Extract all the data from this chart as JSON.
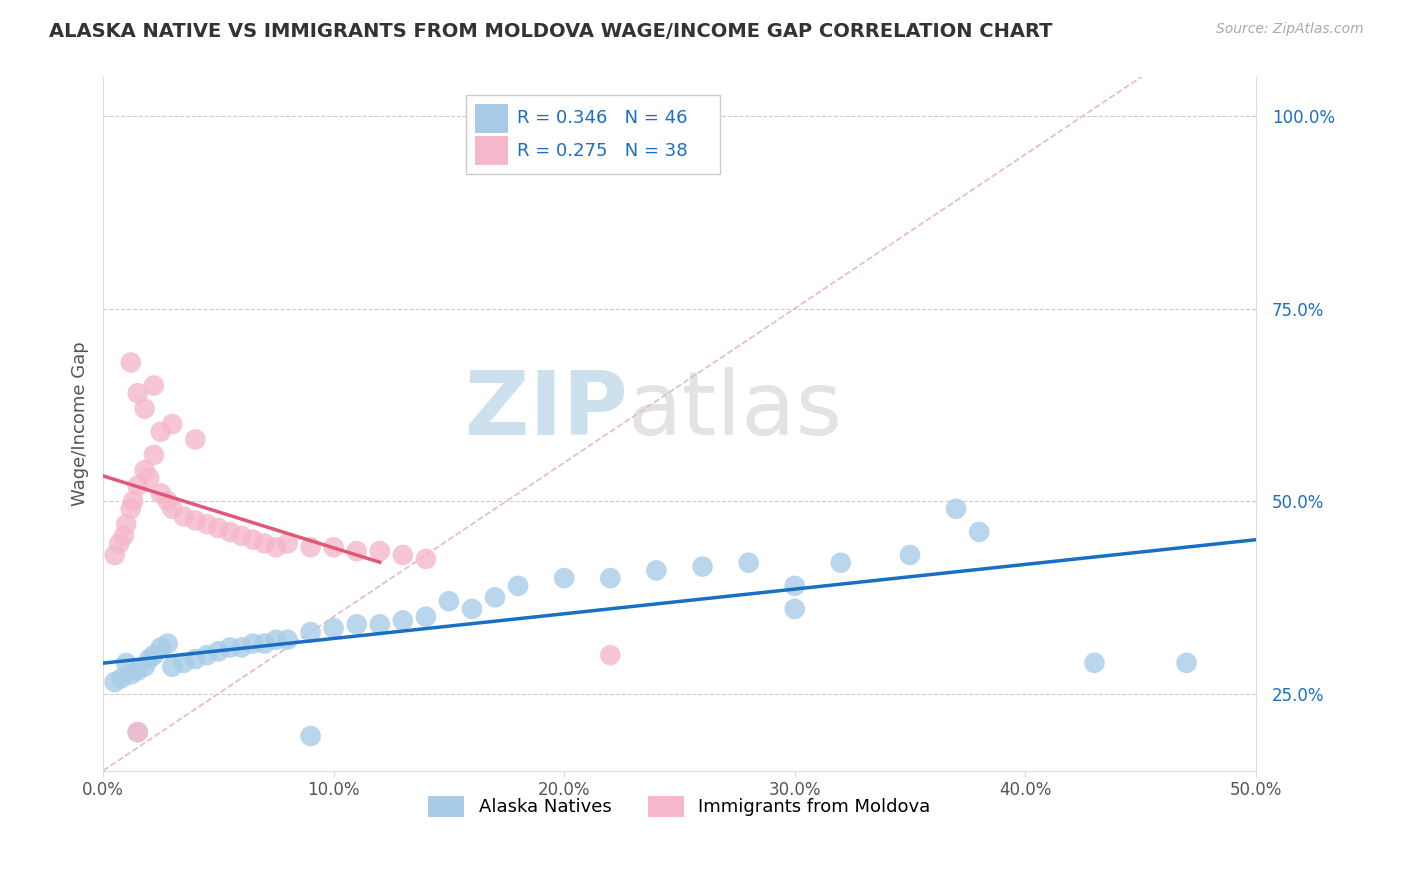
{
  "title": "ALASKA NATIVE VS IMMIGRANTS FROM MOLDOVA WAGE/INCOME GAP CORRELATION CHART",
  "source": "Source: ZipAtlas.com",
  "ylabel": "Wage/Income Gap",
  "xlim": [
    0.0,
    0.5
  ],
  "ylim": [
    0.15,
    1.05
  ],
  "xtick_vals": [
    0.0,
    0.1,
    0.2,
    0.3,
    0.4,
    0.5
  ],
  "xtick_labels": [
    "0.0%",
    "10.0%",
    "20.0%",
    "30.0%",
    "40.0%",
    "50.0%"
  ],
  "ytick_vals": [
    0.25,
    0.5,
    0.75,
    1.0
  ],
  "ytick_labels": [
    "25.0%",
    "50.0%",
    "75.0%",
    "100.0%"
  ],
  "blue_R": 0.346,
  "blue_N": 46,
  "pink_R": 0.275,
  "pink_N": 38,
  "blue_scatter_x": [
    0.005,
    0.008,
    0.01,
    0.012,
    0.015,
    0.018,
    0.02,
    0.022,
    0.025,
    0.028,
    0.03,
    0.035,
    0.04,
    0.045,
    0.05,
    0.055,
    0.06,
    0.065,
    0.07,
    0.075,
    0.08,
    0.09,
    0.1,
    0.11,
    0.12,
    0.13,
    0.14,
    0.15,
    0.16,
    0.17,
    0.18,
    0.2,
    0.22,
    0.24,
    0.26,
    0.28,
    0.3,
    0.32,
    0.35,
    0.37,
    0.3,
    0.38,
    0.43,
    0.47,
    0.015,
    0.09
  ],
  "blue_scatter_y": [
    0.265,
    0.27,
    0.29,
    0.275,
    0.28,
    0.285,
    0.295,
    0.3,
    0.31,
    0.315,
    0.285,
    0.29,
    0.295,
    0.3,
    0.305,
    0.31,
    0.31,
    0.315,
    0.315,
    0.32,
    0.32,
    0.33,
    0.335,
    0.34,
    0.34,
    0.345,
    0.35,
    0.37,
    0.36,
    0.375,
    0.39,
    0.4,
    0.4,
    0.41,
    0.415,
    0.42,
    0.39,
    0.42,
    0.43,
    0.49,
    0.36,
    0.46,
    0.29,
    0.29,
    0.2,
    0.195
  ],
  "pink_scatter_x": [
    0.005,
    0.007,
    0.009,
    0.01,
    0.012,
    0.013,
    0.015,
    0.018,
    0.02,
    0.022,
    0.025,
    0.028,
    0.03,
    0.035,
    0.04,
    0.045,
    0.05,
    0.055,
    0.06,
    0.065,
    0.07,
    0.075,
    0.08,
    0.09,
    0.1,
    0.11,
    0.12,
    0.13,
    0.14,
    0.018,
    0.022,
    0.012,
    0.015,
    0.025,
    0.03,
    0.04,
    0.015,
    0.22
  ],
  "pink_scatter_y": [
    0.43,
    0.445,
    0.455,
    0.47,
    0.49,
    0.5,
    0.52,
    0.54,
    0.53,
    0.56,
    0.51,
    0.5,
    0.49,
    0.48,
    0.475,
    0.47,
    0.465,
    0.46,
    0.455,
    0.45,
    0.445,
    0.44,
    0.445,
    0.44,
    0.44,
    0.435,
    0.435,
    0.43,
    0.425,
    0.62,
    0.65,
    0.68,
    0.64,
    0.59,
    0.6,
    0.58,
    0.2,
    0.3
  ],
  "blue_color": "#a8cce8",
  "pink_color": "#f4b8ca",
  "blue_line_color": "#1a6fc4",
  "pink_line_color": "#e05878",
  "diagonal_color": "#e8b8c8",
  "grid_color": "#cccccc",
  "background_color": "#ffffff",
  "watermark_zip": "ZIP",
  "watermark_atlas": "atlas",
  "watermark_color_zip": "#b8d4e8",
  "watermark_color_atlas": "#c8c8c8"
}
